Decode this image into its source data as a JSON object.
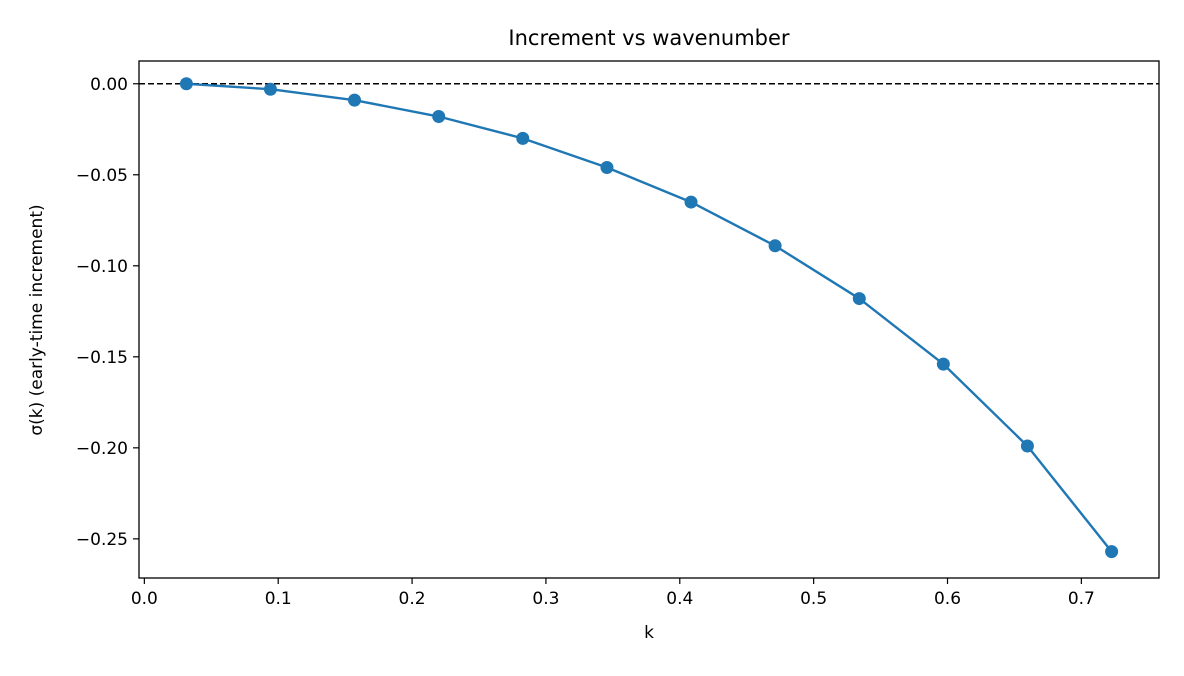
{
  "chart_data": {
    "type": "line",
    "title": "Increment vs wavenumber",
    "xlabel": "k",
    "ylabel": "σ(k)  (early-time increment)",
    "xlim": [
      -0.004,
      0.758
    ],
    "ylim": [
      -0.2715,
      0.0125
    ],
    "xticks": [
      0.0,
      0.1,
      0.2,
      0.3,
      0.4,
      0.5,
      0.6,
      0.7
    ],
    "xtick_labels": [
      "0.0",
      "0.1",
      "0.2",
      "0.3",
      "0.4",
      "0.5",
      "0.6",
      "0.7"
    ],
    "yticks": [
      0.0,
      -0.05,
      -0.1,
      -0.15,
      -0.2,
      -0.25
    ],
    "ytick_labels": [
      "0.00",
      "−0.05",
      "−0.10",
      "−0.15",
      "−0.20",
      "−0.25"
    ],
    "grid": false,
    "series": [
      {
        "color": "#1f77b4",
        "marker": "circle",
        "x": [
          0.0314,
          0.0942,
          0.157,
          0.2199,
          0.2827,
          0.3456,
          0.4084,
          0.4712,
          0.5341,
          0.5969,
          0.6597,
          0.7226
        ],
        "y": [
          0.0,
          -0.003,
          -0.009,
          -0.018,
          -0.03,
          -0.046,
          -0.065,
          -0.089,
          -0.118,
          -0.154,
          -0.199,
          -0.257
        ]
      }
    ],
    "reference_line": {
      "y": 0.0,
      "style": "dashed",
      "color": "#000000"
    }
  }
}
